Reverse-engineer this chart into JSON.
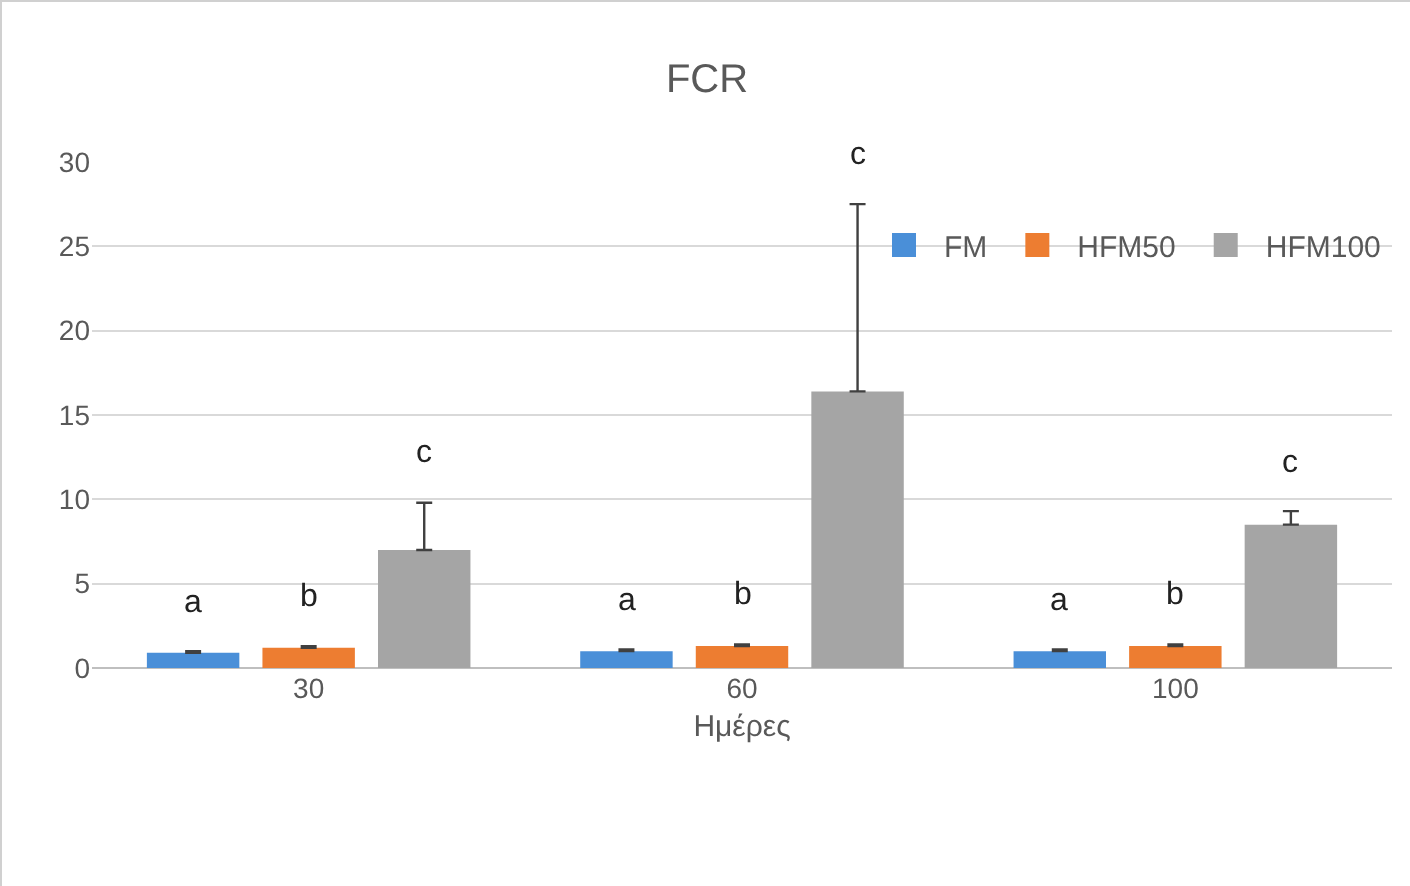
{
  "chart_data": {
    "type": "bar",
    "title": "FCR",
    "xlabel": "Ημέρες",
    "categories": [
      "30",
      "60",
      "100"
    ],
    "series": [
      {
        "name": "FM",
        "color": "#4a8fd8",
        "values": [
          0.9,
          1.0,
          1.0
        ],
        "errors": [
          0.1,
          0.1,
          0.1
        ]
      },
      {
        "name": "HFM50",
        "color": "#ed7d31",
        "values": [
          1.2,
          1.3,
          1.3
        ],
        "errors": [
          0.1,
          0.1,
          0.1
        ]
      },
      {
        "name": "HFM100",
        "color": "#a5a5a5",
        "values": [
          7.0,
          16.4,
          8.5
        ],
        "errors": [
          2.8,
          11.1,
          0.8
        ]
      }
    ],
    "annotations": [
      "a",
      "b",
      "c",
      "a",
      "b",
      "c",
      "a",
      "b",
      "c"
    ],
    "ylim": [
      0,
      30
    ],
    "yticks": [
      0,
      5,
      10,
      15,
      20,
      25,
      30
    ],
    "grid": "y",
    "legend": "top right"
  }
}
